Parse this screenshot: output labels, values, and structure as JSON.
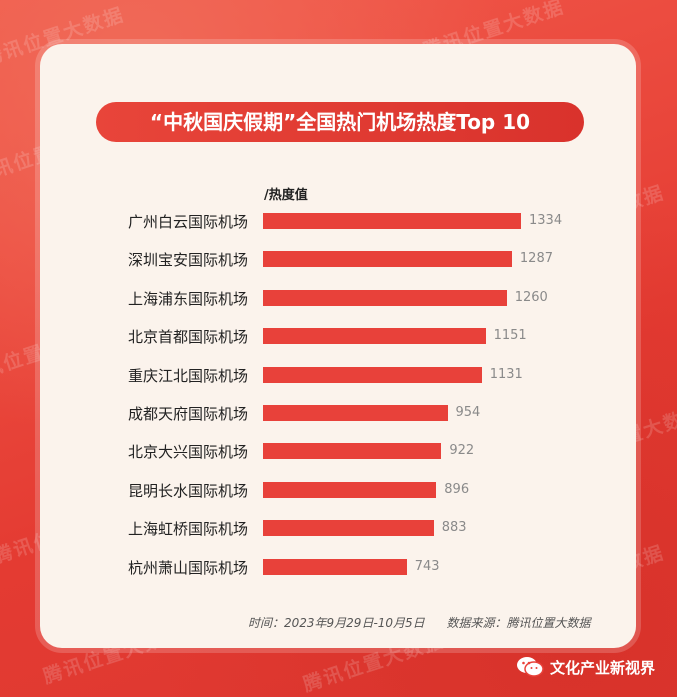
{
  "chart_data": {
    "type": "bar",
    "title": "“中秋国庆假期”全国热门机场热度Top 10",
    "xlabel": "/热度值",
    "categories": [
      "广州白云国际机场",
      "深圳宝安国际机场",
      "上海浦东国际机场",
      "北京首都国际机场",
      "重庆江北国际机场",
      "成都天府国际机场",
      "北京大兴国际机场",
      "昆明长水国际机场",
      "上海虹桥国际机场",
      "杭州萧山国际机场"
    ],
    "values": [
      1334,
      1287,
      1260,
      1151,
      1131,
      954,
      922,
      896,
      883,
      743
    ],
    "bar_color": "#e8413a",
    "orientation": "horizontal"
  },
  "footer": {
    "time": "时间：2023年9月29日-10月5日",
    "source": "数据来源：腾讯位置大数据"
  },
  "watermark_text": "腾讯位置大数据",
  "brand": "文化产业新视界"
}
